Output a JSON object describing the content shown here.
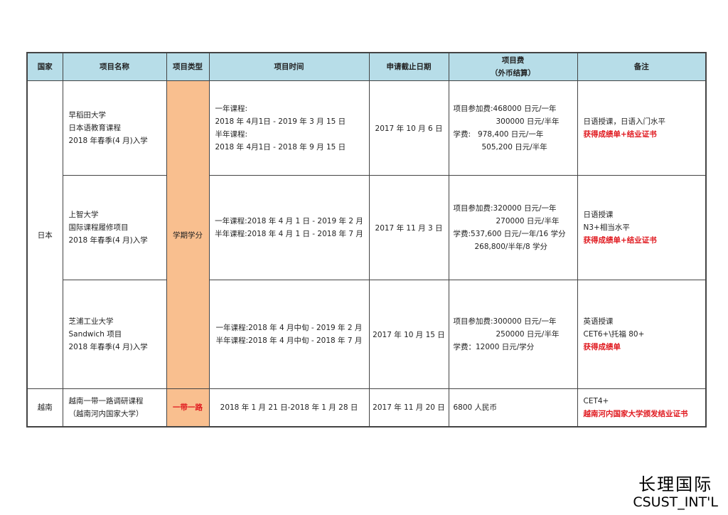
{
  "headers": [
    "国家",
    "项目名称",
    "项目类型",
    "项目时间",
    "申请截止日期",
    "项目费",
    "（外币结算）",
    "备注"
  ],
  "type_colors": {
    "header_bg": "#b7dde8",
    "type_bg": "#f9bf8f",
    "highlight": "#e0191f"
  },
  "japan": {
    "country": "日本",
    "type": "学期学分",
    "rows": [
      {
        "name": [
          "早稻田大学",
          "日本语教育课程",
          "2018 年春季(4 月)入学"
        ],
        "time": [
          "一年课程:",
          "2018 年 4月1日 - 2019 年 3 月 15 日",
          "半年课程:",
          "2018 年 4月1日 - 2018 年 9 月 15 日"
        ],
        "deadline": "2017 年 10 月 6 日",
        "fee": [
          "项目参加费:468000 日元/一年",
          "300000 日元/半年",
          "学费:   978,400 日元/一年",
          "505,200 日元/半年"
        ],
        "notes": [
          "日语授课，日语入门水平"
        ],
        "notes_red": "获得成绩单+结业证书"
      },
      {
        "name": [
          "上智大学",
          "国际课程履修项目",
          "2018 年春季(4 月)入学"
        ],
        "time": [
          "一年课程:2018 年 4 月 1 日 - 2019 年 2 月",
          "半年课程:2018 年 4 月 1 日 - 2018 年 7 月"
        ],
        "deadline": "2017 年 11 月 3 日",
        "fee": [
          "项目参加费:320000 日元/一年",
          "270000 日元/半年",
          "学费:537,600 日元/一年/16 学分",
          "268,800/半年/8 学分"
        ],
        "notes": [
          "日语授课",
          "N3+相当水平"
        ],
        "notes_red": "获得成绩单+结业证书"
      },
      {
        "name": [
          "芝浦工业大学",
          "Sandwich 项目",
          "2018 年春季(4 月)入学"
        ],
        "time": [
          "一年课程:2018 年 4 月中旬 - 2019 年 2 月",
          "半年课程:2018 年 4 月中旬 - 2018 年 7 月"
        ],
        "deadline": "2017 年 10 月 15 日",
        "fee": [
          "项目参加费:300000 日元/一年",
          "250000 日元/半年",
          "学费：12000 日元/学分"
        ],
        "notes": [
          "英语授课",
          "CET6+\\托福 80+"
        ],
        "notes_red": "获得成绩单"
      }
    ]
  },
  "vietnam": {
    "country": "越南",
    "name": [
      "越南一带一路调研课程",
      "（越南河内国家大学）"
    ],
    "type": "一带一路",
    "time": "2018 年 1 月 21 日-2018 年 1 月 28 日",
    "deadline": "2017 年 11 月 20 日",
    "fee": "6800 人民币",
    "notes": "CET4+",
    "notes_red": "越南河内国家大学颁发结业证书"
  },
  "logo": {
    "cn": "长理国际",
    "en": "CSUST_INT'L"
  }
}
